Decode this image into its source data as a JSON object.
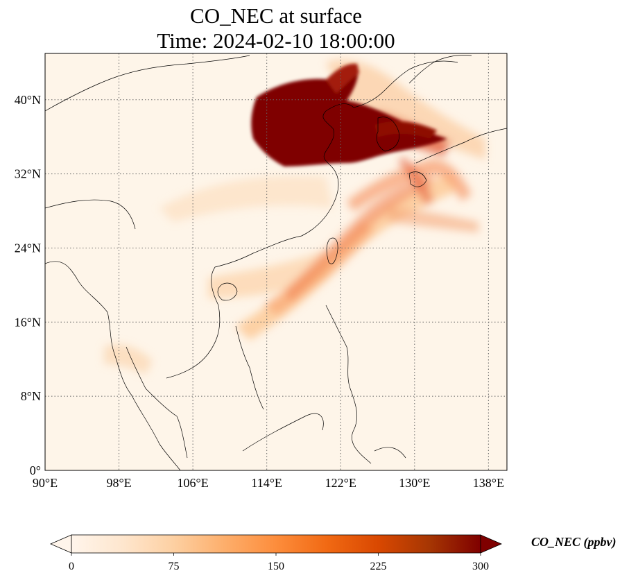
{
  "title": "CO_NEC at surface",
  "subtitle": "Time: 2024-02-10 18:00:00",
  "map": {
    "lon_range": [
      90,
      140
    ],
    "lat_range": [
      0,
      45
    ],
    "lon_ticks": [
      "90°E",
      "98°E",
      "106°E",
      "114°E",
      "122°E",
      "130°E",
      "138°E"
    ],
    "lon_tick_values": [
      90,
      98,
      106,
      114,
      122,
      130,
      138
    ],
    "lat_ticks": [
      "0°",
      "8°N",
      "16°N",
      "24°N",
      "32°N",
      "40°N"
    ],
    "lat_tick_values": [
      0,
      8,
      16,
      24,
      32,
      40
    ],
    "gridlines": true
  },
  "colorbar": {
    "label": "CO_NEC (ppbv)",
    "ticks": [
      "0",
      "75",
      "150",
      "225",
      "300"
    ],
    "tick_values": [
      0,
      75,
      150,
      225,
      300
    ],
    "range": [
      0,
      300
    ],
    "extend": "both",
    "colors": [
      "#fff5eb",
      "#fee6ce",
      "#fdd0a2",
      "#fdae6b",
      "#fd8d3c",
      "#f16913",
      "#d94801",
      "#a63603",
      "#7f0000"
    ]
  }
}
